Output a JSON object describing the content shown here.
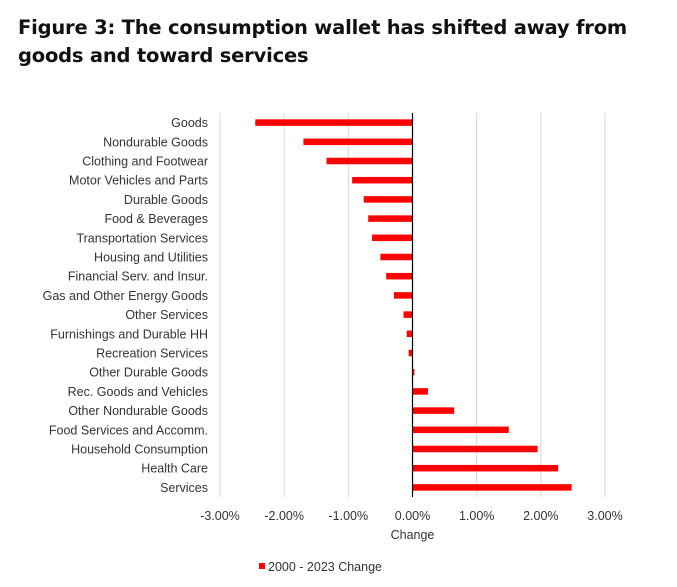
{
  "chart_data": {
    "type": "bar",
    "orientation": "horizontal",
    "title": "Figure 3: The consumption wallet has shifted away from goods and toward services",
    "xlabel": "Change",
    "ylabel": "",
    "xlim": [
      -0.03,
      0.03
    ],
    "xticks": [
      -0.03,
      -0.02,
      -0.01,
      0.0,
      0.01,
      0.02,
      0.03
    ],
    "xtick_labels": [
      "-3.00%",
      "-2.00%",
      "-1.00%",
      "0.00%",
      "1.00%",
      "2.00%",
      "3.00%"
    ],
    "grid": "vertical",
    "legend_position": "bottom",
    "bar_color": "#ff0000",
    "categories": [
      "Goods",
      "Nondurable Goods",
      "Clothing and Footwear",
      "Motor Vehicles and Parts",
      "Durable Goods",
      "Food & Beverages",
      "Transportation Services",
      "Housing and Utilities",
      "Financial Serv. and Insur.",
      "Gas and Other Energy Goods",
      "Other Services",
      "Furnishings and Durable HH",
      "Recreation Services",
      "Other Durable Goods",
      "Rec. Goods and Vehicles",
      "Other Nondurable Goods",
      "Food Services and Accomm.",
      "Household Consumption",
      "Health Care",
      "Services"
    ],
    "series": [
      {
        "name": "2000 - 2023 Change",
        "values": [
          -0.0245,
          -0.017,
          -0.0134,
          -0.0094,
          -0.0076,
          -0.0069,
          -0.0063,
          -0.005,
          -0.0041,
          -0.0029,
          -0.0014,
          -0.0009,
          -0.0006,
          0.0003,
          0.0024,
          0.0065,
          0.015,
          0.0195,
          0.0227,
          0.0248
        ]
      }
    ]
  }
}
